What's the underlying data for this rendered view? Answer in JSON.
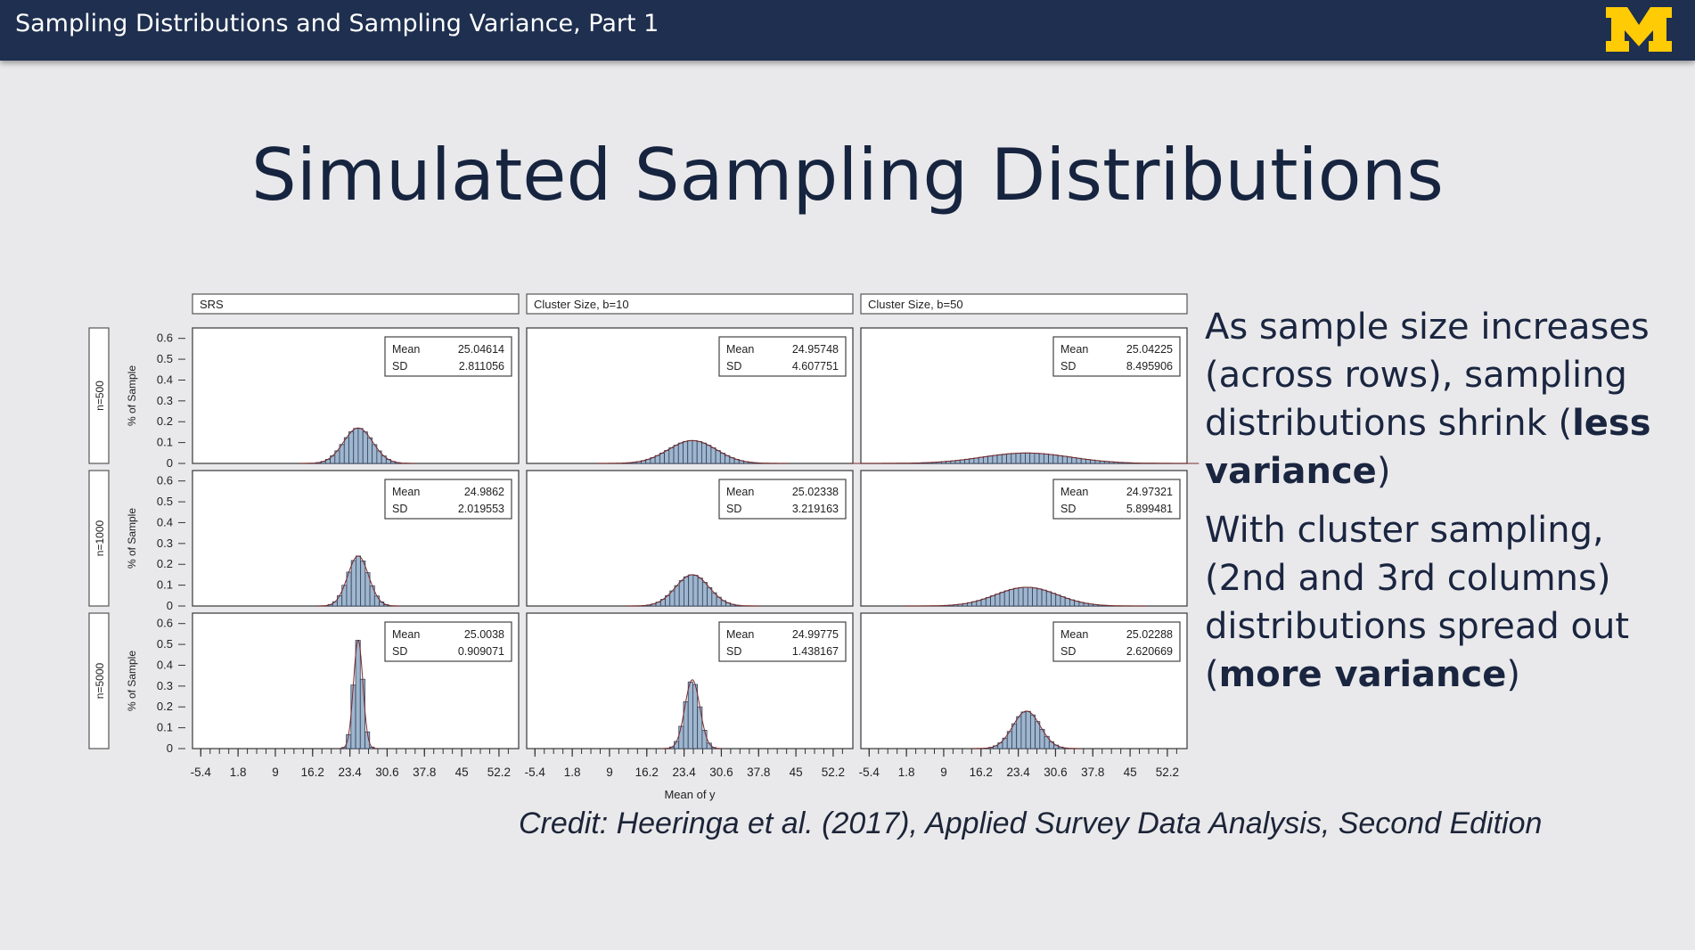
{
  "header": {
    "title": "Sampling Distributions and Sampling Variance, Part 1",
    "logo_icon": "block-m-logo",
    "logo_color": "#ffcb05",
    "bar_color": "#1e2f4f"
  },
  "slide": {
    "title": "Simulated Sampling Distributions"
  },
  "bullets": [
    {
      "lead": "As sample size increases (across rows), sampling distributions shrink (",
      "bold": "less variance",
      "tail": ")"
    },
    {
      "lead": "With cluster sampling, (2nd and 3rd columns) distributions spread out (",
      "bold": "more variance",
      "tail": ")"
    }
  ],
  "credit": "Credit: Heeringa et al. (2017), Applied Survey Data Analysis, Second Edition",
  "chart_data": {
    "type": "histogram-panel",
    "columns": [
      "SRS",
      "Cluster Size, b=10",
      "Cluster Size, b=50"
    ],
    "rows": [
      "n=500",
      "n=1000",
      "n=5000"
    ],
    "xlabel": "Mean of y",
    "ylabel": "% of Sample",
    "xlim": [
      -7,
      56
    ],
    "ylim": [
      0,
      0.65
    ],
    "xticks": [
      "-5.4",
      "1.8",
      "9",
      "16.2",
      "23.4",
      "30.6",
      "37.8",
      "45",
      "52.2"
    ],
    "yticks": [
      "0",
      "0.1",
      "0.2",
      "0.3",
      "0.4",
      "0.5",
      "0.6"
    ],
    "stat_labels": {
      "mean": "Mean",
      "sd": "SD"
    },
    "bar_color": "#9fb6cf",
    "panels": [
      {
        "row": 0,
        "col": 0,
        "mean": "25.04614",
        "sd": "2.811056",
        "peak": 0.17,
        "center": 25.0,
        "spread": 2.81
      },
      {
        "row": 0,
        "col": 1,
        "mean": "24.95748",
        "sd": "4.607751",
        "peak": 0.11,
        "center": 25.0,
        "spread": 4.61
      },
      {
        "row": 0,
        "col": 2,
        "mean": "25.04225",
        "sd": "8.495906",
        "peak": 0.05,
        "center": 25.0,
        "spread": 8.5
      },
      {
        "row": 1,
        "col": 0,
        "mean": "24.9862",
        "sd": "2.019553",
        "peak": 0.24,
        "center": 25.0,
        "spread": 2.02
      },
      {
        "row": 1,
        "col": 1,
        "mean": "25.02338",
        "sd": "3.219163",
        "peak": 0.15,
        "center": 25.0,
        "spread": 3.22
      },
      {
        "row": 1,
        "col": 2,
        "mean": "24.97321",
        "sd": "5.899481",
        "peak": 0.09,
        "center": 25.0,
        "spread": 5.9
      },
      {
        "row": 2,
        "col": 0,
        "mean": "25.0038",
        "sd": "0.909071",
        "peak": 0.52,
        "center": 25.0,
        "spread": 0.91
      },
      {
        "row": 2,
        "col": 1,
        "mean": "24.99775",
        "sd": "1.438167",
        "peak": 0.33,
        "center": 25.0,
        "spread": 1.44
      },
      {
        "row": 2,
        "col": 2,
        "mean": "25.02288",
        "sd": "2.620669",
        "peak": 0.18,
        "center": 25.0,
        "spread": 2.62
      }
    ]
  }
}
